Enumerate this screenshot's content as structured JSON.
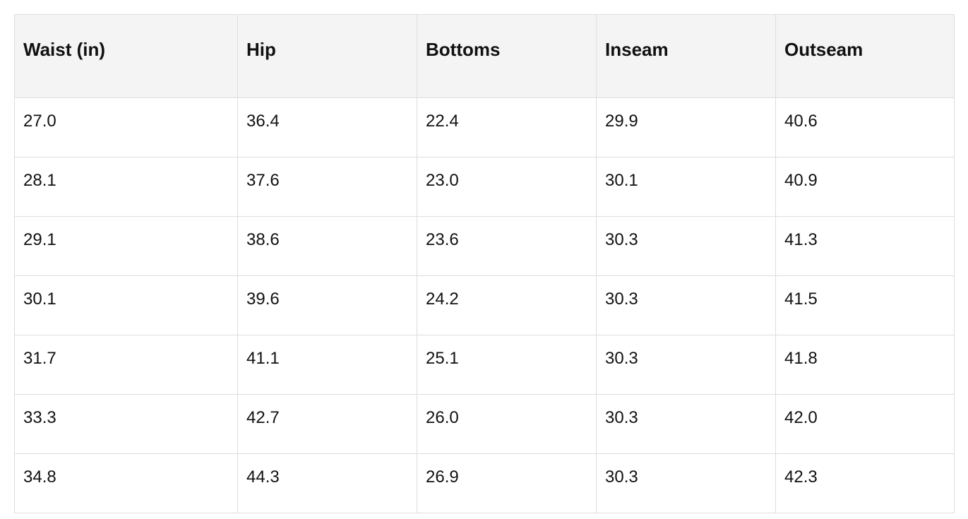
{
  "table": {
    "header": [
      "Waist (in)",
      "Hip",
      "Bottoms",
      "Inseam",
      "Outseam"
    ],
    "rows": [
      [
        "27.0",
        "36.4",
        "22.4",
        "29.9",
        "40.6"
      ],
      [
        "28.1",
        "37.6",
        "23.0",
        "30.1",
        "40.9"
      ],
      [
        "29.1",
        "38.6",
        "23.6",
        "30.3",
        "41.3"
      ],
      [
        "30.1",
        "39.6",
        "24.2",
        "30.3",
        "41.5"
      ],
      [
        "31.7",
        "41.1",
        "25.1",
        "30.3",
        "41.8"
      ],
      [
        "33.3",
        "42.7",
        "26.0",
        "30.3",
        "42.0"
      ],
      [
        "34.8",
        "44.3",
        "26.9",
        "30.3",
        "42.3"
      ]
    ]
  }
}
